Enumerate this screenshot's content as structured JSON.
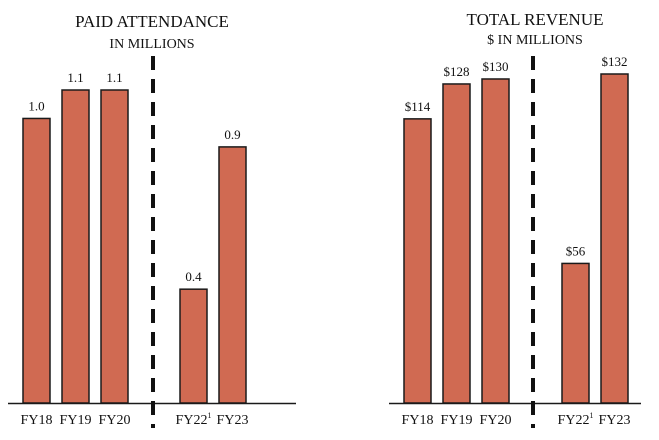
{
  "chart_data": [
    {
      "type": "bar",
      "title": "PAID ATTENDANCE",
      "subtitle": "IN MILLIONS",
      "categories": [
        "FY18",
        "FY19",
        "FY20",
        "FY22",
        "FY23"
      ],
      "category_superscripts": [
        "",
        "",
        "",
        "1",
        ""
      ],
      "values": [
        1.0,
        1.1,
        1.1,
        0.4,
        0.9
      ],
      "data_labels": [
        "1.0",
        "1.1",
        "1.1",
        "0.4",
        "0.9"
      ],
      "ylim": [
        0,
        1.1
      ],
      "divider_after_index": 2,
      "grid": false,
      "legend": "none"
    },
    {
      "type": "bar",
      "title": "TOTAL REVENUE",
      "subtitle": "$ IN MILLIONS",
      "categories": [
        "FY18",
        "FY19",
        "FY20",
        "FY22",
        "FY23"
      ],
      "category_superscripts": [
        "",
        "",
        "",
        "1",
        ""
      ],
      "values": [
        114,
        128,
        130,
        56,
        132
      ],
      "data_labels": [
        "$114",
        "$128",
        "$130",
        "$56",
        "$132"
      ],
      "ylim": [
        0,
        132
      ],
      "divider_after_index": 2,
      "grid": false,
      "legend": "none"
    }
  ],
  "colors": {
    "bar_fill": "#D06A52",
    "bar_stroke": "#1a1a1a",
    "axis": "#1a1a1a",
    "divider": "#111111",
    "text": "#111111"
  }
}
